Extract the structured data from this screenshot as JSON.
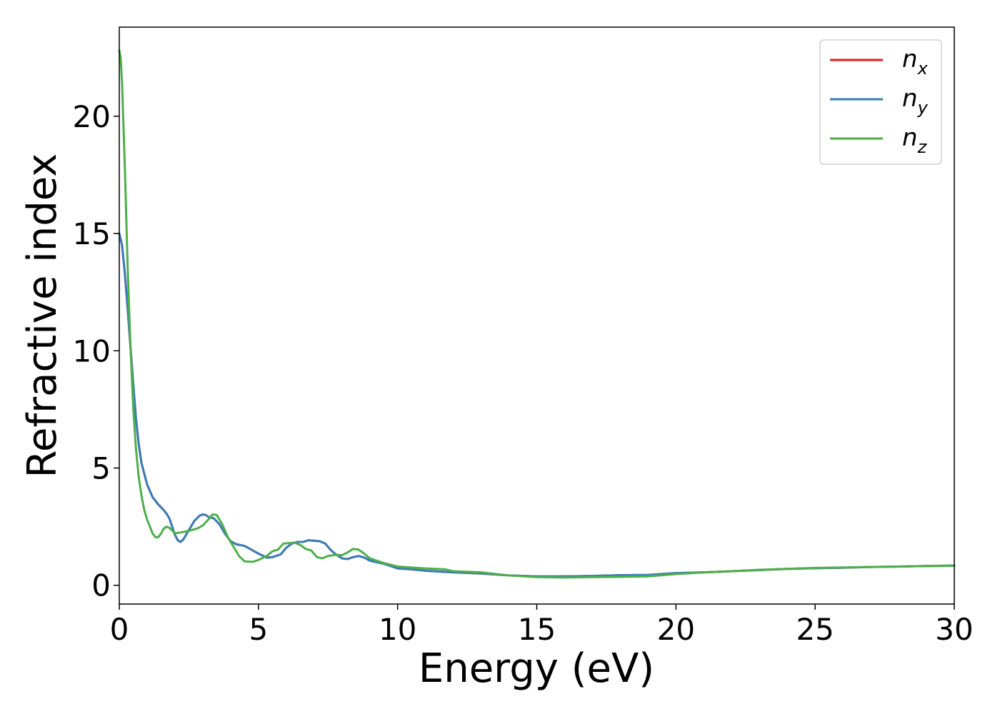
{
  "chart_data": {
    "type": "line",
    "title": "",
    "xlabel": "Energy (eV)",
    "ylabel": "Refractive index",
    "xlim": [
      0,
      30
    ],
    "ylim": [
      -0.8,
      23.8
    ],
    "grid": false,
    "legend_position": "top-right",
    "xticks": [
      0,
      5,
      10,
      15,
      20,
      25,
      30
    ],
    "yticks": [
      0,
      5,
      10,
      15,
      20
    ],
    "series": [
      {
        "name": "n_x",
        "label_main": "n",
        "label_sub": "x",
        "color": "#e41a1c",
        "points": [
          [
            0,
            15
          ],
          [
            0.1,
            14.5
          ],
          [
            0.2,
            13.3
          ],
          [
            0.3,
            11.8
          ],
          [
            0.4,
            10.2
          ],
          [
            0.5,
            8.6
          ],
          [
            0.6,
            7.1
          ],
          [
            0.7,
            6.0
          ],
          [
            0.8,
            5.2
          ],
          [
            1.0,
            4.3
          ],
          [
            1.2,
            3.75
          ],
          [
            1.4,
            3.45
          ],
          [
            1.6,
            3.2
          ],
          [
            1.7,
            3.05
          ],
          [
            1.8,
            2.85
          ],
          [
            1.9,
            2.5
          ],
          [
            2.0,
            2.15
          ],
          [
            2.1,
            1.92
          ],
          [
            2.2,
            1.85
          ],
          [
            2.3,
            1.95
          ],
          [
            2.5,
            2.35
          ],
          [
            2.7,
            2.75
          ],
          [
            2.9,
            2.98
          ],
          [
            3.0,
            3.02
          ],
          [
            3.1,
            3.0
          ],
          [
            3.2,
            2.92
          ],
          [
            3.4,
            2.85
          ],
          [
            3.6,
            2.6
          ],
          [
            3.8,
            2.2
          ],
          [
            4.0,
            1.88
          ],
          [
            4.2,
            1.75
          ],
          [
            4.5,
            1.68
          ],
          [
            4.7,
            1.55
          ],
          [
            5.0,
            1.35
          ],
          [
            5.3,
            1.18
          ],
          [
            5.5,
            1.2
          ],
          [
            5.8,
            1.32
          ],
          [
            6.0,
            1.6
          ],
          [
            6.2,
            1.78
          ],
          [
            6.4,
            1.85
          ],
          [
            6.6,
            1.85
          ],
          [
            6.8,
            1.92
          ],
          [
            7.0,
            1.9
          ],
          [
            7.2,
            1.88
          ],
          [
            7.4,
            1.78
          ],
          [
            7.6,
            1.5
          ],
          [
            7.8,
            1.3
          ],
          [
            8.0,
            1.15
          ],
          [
            8.2,
            1.12
          ],
          [
            8.4,
            1.2
          ],
          [
            8.6,
            1.25
          ],
          [
            8.8,
            1.18
          ],
          [
            9.0,
            1.05
          ],
          [
            9.5,
            0.92
          ],
          [
            10.0,
            0.72
          ],
          [
            10.5,
            0.68
          ],
          [
            11.0,
            0.62
          ],
          [
            12.0,
            0.55
          ],
          [
            13.0,
            0.5
          ],
          [
            14.0,
            0.42
          ],
          [
            15.0,
            0.38
          ],
          [
            16.0,
            0.38
          ],
          [
            17.0,
            0.4
          ],
          [
            18.0,
            0.43
          ],
          [
            19.0,
            0.44
          ],
          [
            20.0,
            0.52
          ],
          [
            21.0,
            0.55
          ],
          [
            22.0,
            0.6
          ],
          [
            23.0,
            0.65
          ],
          [
            24.0,
            0.7
          ],
          [
            25.0,
            0.73
          ],
          [
            26.0,
            0.75
          ],
          [
            27.0,
            0.78
          ],
          [
            28.0,
            0.8
          ],
          [
            29.0,
            0.82
          ],
          [
            30.0,
            0.84
          ]
        ]
      },
      {
        "name": "n_y",
        "label_main": "n",
        "label_sub": "y",
        "color": "#377eb8",
        "points": [
          [
            0,
            15
          ],
          [
            0.1,
            14.5
          ],
          [
            0.2,
            13.3
          ],
          [
            0.3,
            11.8
          ],
          [
            0.4,
            10.2
          ],
          [
            0.5,
            8.6
          ],
          [
            0.6,
            7.1
          ],
          [
            0.7,
            6.0
          ],
          [
            0.8,
            5.2
          ],
          [
            1.0,
            4.3
          ],
          [
            1.2,
            3.75
          ],
          [
            1.4,
            3.45
          ],
          [
            1.6,
            3.2
          ],
          [
            1.7,
            3.05
          ],
          [
            1.8,
            2.85
          ],
          [
            1.9,
            2.5
          ],
          [
            2.0,
            2.15
          ],
          [
            2.1,
            1.92
          ],
          [
            2.2,
            1.85
          ],
          [
            2.3,
            1.95
          ],
          [
            2.5,
            2.35
          ],
          [
            2.7,
            2.75
          ],
          [
            2.9,
            2.98
          ],
          [
            3.0,
            3.02
          ],
          [
            3.1,
            3.0
          ],
          [
            3.2,
            2.92
          ],
          [
            3.4,
            2.85
          ],
          [
            3.6,
            2.6
          ],
          [
            3.8,
            2.2
          ],
          [
            4.0,
            1.88
          ],
          [
            4.2,
            1.75
          ],
          [
            4.5,
            1.68
          ],
          [
            4.7,
            1.55
          ],
          [
            5.0,
            1.35
          ],
          [
            5.3,
            1.18
          ],
          [
            5.5,
            1.2
          ],
          [
            5.8,
            1.32
          ],
          [
            6.0,
            1.6
          ],
          [
            6.2,
            1.78
          ],
          [
            6.4,
            1.85
          ],
          [
            6.6,
            1.85
          ],
          [
            6.8,
            1.92
          ],
          [
            7.0,
            1.9
          ],
          [
            7.2,
            1.88
          ],
          [
            7.4,
            1.78
          ],
          [
            7.6,
            1.5
          ],
          [
            7.8,
            1.3
          ],
          [
            8.0,
            1.15
          ],
          [
            8.2,
            1.12
          ],
          [
            8.4,
            1.2
          ],
          [
            8.6,
            1.25
          ],
          [
            8.8,
            1.18
          ],
          [
            9.0,
            1.05
          ],
          [
            9.5,
            0.92
          ],
          [
            10.0,
            0.72
          ],
          [
            10.5,
            0.68
          ],
          [
            11.0,
            0.62
          ],
          [
            12.0,
            0.55
          ],
          [
            13.0,
            0.5
          ],
          [
            14.0,
            0.42
          ],
          [
            15.0,
            0.38
          ],
          [
            16.0,
            0.38
          ],
          [
            17.0,
            0.4
          ],
          [
            18.0,
            0.43
          ],
          [
            19.0,
            0.44
          ],
          [
            20.0,
            0.52
          ],
          [
            21.0,
            0.55
          ],
          [
            22.0,
            0.6
          ],
          [
            23.0,
            0.65
          ],
          [
            24.0,
            0.7
          ],
          [
            25.0,
            0.73
          ],
          [
            26.0,
            0.75
          ],
          [
            27.0,
            0.78
          ],
          [
            28.0,
            0.8
          ],
          [
            29.0,
            0.82
          ],
          [
            30.0,
            0.84
          ]
        ]
      },
      {
        "name": "n_z",
        "label_main": "n",
        "label_sub": "z",
        "color": "#4daf4a",
        "points": [
          [
            0,
            22.8
          ],
          [
            0.05,
            22.5
          ],
          [
            0.1,
            21.4
          ],
          [
            0.2,
            17.8
          ],
          [
            0.3,
            13.6
          ],
          [
            0.4,
            10.2
          ],
          [
            0.5,
            7.6
          ],
          [
            0.6,
            5.8
          ],
          [
            0.7,
            4.6
          ],
          [
            0.8,
            3.8
          ],
          [
            0.9,
            3.2
          ],
          [
            1.0,
            2.8
          ],
          [
            1.2,
            2.2
          ],
          [
            1.3,
            2.05
          ],
          [
            1.4,
            2.05
          ],
          [
            1.5,
            2.2
          ],
          [
            1.6,
            2.42
          ],
          [
            1.7,
            2.5
          ],
          [
            1.8,
            2.45
          ],
          [
            2.0,
            2.22
          ],
          [
            2.2,
            2.25
          ],
          [
            2.5,
            2.32
          ],
          [
            2.8,
            2.42
          ],
          [
            3.0,
            2.55
          ],
          [
            3.2,
            2.8
          ],
          [
            3.35,
            3.02
          ],
          [
            3.5,
            3.0
          ],
          [
            3.7,
            2.6
          ],
          [
            3.9,
            2.05
          ],
          [
            4.1,
            1.65
          ],
          [
            4.3,
            1.25
          ],
          [
            4.5,
            1.02
          ],
          [
            4.8,
            1.0
          ],
          [
            5.0,
            1.08
          ],
          [
            5.3,
            1.25
          ],
          [
            5.5,
            1.45
          ],
          [
            5.7,
            1.52
          ],
          [
            5.9,
            1.78
          ],
          [
            6.1,
            1.8
          ],
          [
            6.3,
            1.82
          ],
          [
            6.5,
            1.72
          ],
          [
            6.7,
            1.55
          ],
          [
            6.9,
            1.48
          ],
          [
            7.1,
            1.2
          ],
          [
            7.3,
            1.15
          ],
          [
            7.5,
            1.25
          ],
          [
            7.8,
            1.3
          ],
          [
            8.0,
            1.28
          ],
          [
            8.2,
            1.4
          ],
          [
            8.4,
            1.55
          ],
          [
            8.6,
            1.52
          ],
          [
            8.8,
            1.35
          ],
          [
            9.0,
            1.15
          ],
          [
            9.5,
            0.95
          ],
          [
            10.0,
            0.8
          ],
          [
            11.0,
            0.72
          ],
          [
            11.7,
            0.68
          ],
          [
            12.0,
            0.6
          ],
          [
            13.0,
            0.55
          ],
          [
            14.0,
            0.42
          ],
          [
            15.0,
            0.35
          ],
          [
            16.0,
            0.33
          ],
          [
            17.0,
            0.35
          ],
          [
            18.0,
            0.36
          ],
          [
            19.0,
            0.38
          ],
          [
            20.0,
            0.48
          ],
          [
            21.0,
            0.55
          ],
          [
            22.0,
            0.6
          ],
          [
            23.0,
            0.66
          ],
          [
            24.0,
            0.7
          ],
          [
            25.0,
            0.74
          ],
          [
            26.0,
            0.76
          ],
          [
            27.0,
            0.78
          ],
          [
            28.0,
            0.8
          ],
          [
            29.0,
            0.82
          ],
          [
            30.0,
            0.83
          ]
        ]
      }
    ]
  }
}
